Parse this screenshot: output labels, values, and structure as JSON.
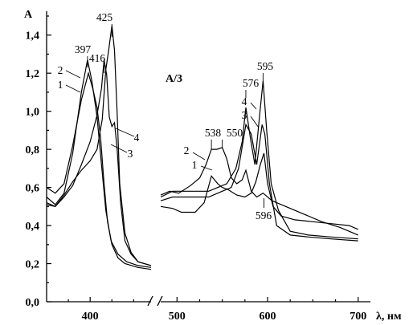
{
  "chart_data": {
    "type": "line",
    "ylabel": "A",
    "xlabel": "λ, нм",
    "panel_label": "A/3",
    "xlim": [
      350,
      710
    ],
    "ylim": [
      0,
      1.5
    ],
    "x_break": [
      470,
      482
    ],
    "x_ticks": [
      {
        "value": 400,
        "label": "400"
      },
      {
        "value": 500,
        "label": "500"
      },
      {
        "value": 600,
        "label": "600"
      },
      {
        "value": 700,
        "label": "700"
      }
    ],
    "y_ticks": [
      {
        "value": 0.0,
        "label": "0,0"
      },
      {
        "value": 0.2,
        "label": "0,2"
      },
      {
        "value": 0.4,
        "label": "0,4"
      },
      {
        "value": 0.6,
        "label": "0,6"
      },
      {
        "value": 0.8,
        "label": "0,8"
      },
      {
        "value": 1.0,
        "label": "1,0"
      },
      {
        "value": 1.2,
        "label": "1,2"
      },
      {
        "value": 1.4,
        "label": "1,4"
      }
    ],
    "series": [
      {
        "name": "1",
        "segments": [
          [
            [
              350,
              0.6
            ],
            [
              360,
              0.57
            ],
            [
              370,
              0.62
            ],
            [
              380,
              0.82
            ],
            [
              390,
              1.06
            ],
            [
              398,
              1.2
            ],
            [
              403,
              1.12
            ],
            [
              408,
              1.02
            ],
            [
              412,
              0.86
            ],
            [
              416,
              0.62
            ],
            [
              420,
              0.42
            ],
            [
              425,
              0.3
            ],
            [
              432,
              0.23
            ],
            [
              440,
              0.2
            ],
            [
              455,
              0.18
            ],
            [
              470,
              0.17
            ]
          ],
          [
            [
              482,
              0.5
            ],
            [
              495,
              0.49
            ],
            [
              505,
              0.47
            ],
            [
              520,
              0.47
            ],
            [
              530,
              0.52
            ],
            [
              538,
              0.66
            ],
            [
              545,
              0.62
            ],
            [
              550,
              0.6
            ],
            [
              556,
              0.59
            ],
            [
              566,
              0.56
            ],
            [
              575,
              0.55
            ],
            [
              582,
              0.57
            ],
            [
              587,
              0.63
            ],
            [
              592,
              0.72
            ],
            [
              596,
              0.78
            ],
            [
              600,
              0.62
            ],
            [
              606,
              0.5
            ],
            [
              615,
              0.45
            ],
            [
              630,
              0.43
            ],
            [
              650,
              0.42
            ],
            [
              670,
              0.41
            ],
            [
              690,
              0.4
            ],
            [
              700,
              0.38
            ]
          ]
        ]
      },
      {
        "name": "2",
        "segments": [
          [
            [
              350,
              0.55
            ],
            [
              360,
              0.51
            ],
            [
              370,
              0.57
            ],
            [
              380,
              0.78
            ],
            [
              390,
              1.1
            ],
            [
              397,
              1.27
            ],
            [
              402,
              1.16
            ],
            [
              408,
              0.97
            ],
            [
              413,
              0.72
            ],
            [
              418,
              0.48
            ],
            [
              424,
              0.32
            ],
            [
              432,
              0.25
            ],
            [
              442,
              0.21
            ],
            [
              455,
              0.19
            ],
            [
              470,
              0.18
            ]
          ],
          [
            [
              482,
              0.56
            ],
            [
              492,
              0.58
            ],
            [
              502,
              0.57
            ],
            [
              515,
              0.61
            ],
            [
              525,
              0.65
            ],
            [
              532,
              0.72
            ],
            [
              538,
              0.8
            ],
            [
              544,
              0.8
            ],
            [
              550,
              0.81
            ],
            [
              555,
              0.75
            ],
            [
              560,
              0.65
            ],
            [
              566,
              0.62
            ],
            [
              572,
              0.64
            ],
            [
              576,
              0.69
            ],
            [
              582,
              0.58
            ],
            [
              588,
              0.55
            ],
            [
              595,
              0.57
            ],
            [
              605,
              0.53
            ],
            [
              620,
              0.5
            ],
            [
              640,
              0.46
            ],
            [
              660,
              0.42
            ],
            [
              680,
              0.39
            ],
            [
              700,
              0.35
            ]
          ]
        ]
      },
      {
        "name": "3",
        "segments": [
          [
            [
              350,
              0.52
            ],
            [
              360,
              0.5
            ],
            [
              370,
              0.55
            ],
            [
              380,
              0.61
            ],
            [
              390,
              0.72
            ],
            [
              400,
              0.84
            ],
            [
              408,
              0.98
            ],
            [
              413,
              1.12
            ],
            [
              416,
              1.27
            ],
            [
              419,
              1.19
            ],
            [
              422,
              0.97
            ],
            [
              425,
              0.92
            ],
            [
              428,
              0.94
            ],
            [
              431,
              0.8
            ],
            [
              435,
              0.52
            ],
            [
              440,
              0.32
            ],
            [
              447,
              0.25
            ],
            [
              455,
              0.21
            ],
            [
              470,
              0.19
            ]
          ],
          [
            [
              482,
              0.53
            ],
            [
              495,
              0.55
            ],
            [
              505,
              0.55
            ],
            [
              520,
              0.55
            ],
            [
              535,
              0.55
            ],
            [
              550,
              0.58
            ],
            [
              560,
              0.6
            ],
            [
              568,
              0.7
            ],
            [
              576,
              0.93
            ],
            [
              582,
              0.88
            ],
            [
              588,
              0.72
            ],
            [
              594,
              0.93
            ],
            [
              597,
              0.88
            ],
            [
              602,
              0.62
            ],
            [
              610,
              0.4
            ],
            [
              625,
              0.35
            ],
            [
              645,
              0.34
            ],
            [
              670,
              0.33
            ],
            [
              700,
              0.32
            ]
          ]
        ]
      },
      {
        "name": "4",
        "segments": [
          [
            [
              350,
              0.51
            ],
            [
              360,
              0.5
            ],
            [
              370,
              0.56
            ],
            [
              380,
              0.63
            ],
            [
              390,
              0.69
            ],
            [
              400,
              0.74
            ],
            [
              408,
              0.8
            ],
            [
              414,
              0.96
            ],
            [
              418,
              1.22
            ],
            [
              421,
              1.31
            ],
            [
              425,
              1.45
            ],
            [
              428,
              1.32
            ],
            [
              431,
              0.99
            ],
            [
              434,
              0.62
            ],
            [
              440,
              0.36
            ],
            [
              447,
              0.26
            ],
            [
              455,
              0.21
            ],
            [
              470,
              0.19
            ]
          ],
          [
            [
              482,
              0.55
            ],
            [
              495,
              0.58
            ],
            [
              505,
              0.58
            ],
            [
              520,
              0.58
            ],
            [
              535,
              0.58
            ],
            [
              545,
              0.6
            ],
            [
              555,
              0.62
            ],
            [
              565,
              0.7
            ],
            [
              572,
              0.84
            ],
            [
              576,
              1.02
            ],
            [
              581,
              0.86
            ],
            [
              586,
              0.72
            ],
            [
              591,
              0.97
            ],
            [
              595,
              1.16
            ],
            [
              599,
              0.9
            ],
            [
              604,
              0.62
            ],
            [
              612,
              0.48
            ],
            [
              625,
              0.37
            ],
            [
              645,
              0.35
            ],
            [
              670,
              0.34
            ],
            [
              700,
              0.33
            ]
          ]
        ]
      }
    ],
    "peak_annotations": [
      {
        "text": "397",
        "x": 397,
        "y": 1.27
      },
      {
        "text": "416",
        "x": 416,
        "y": 1.27
      },
      {
        "text": "425",
        "x": 425,
        "y": 1.45
      },
      {
        "text": "538",
        "x": 538,
        "y": 0.8
      },
      {
        "text": "550",
        "x": 550,
        "y": 0.81
      },
      {
        "text": "576",
        "x": 576,
        "y": 1.02
      },
      {
        "text": "595",
        "x": 595,
        "y": 1.16
      },
      {
        "text": "596",
        "x": 596,
        "y": 0.78
      }
    ]
  }
}
